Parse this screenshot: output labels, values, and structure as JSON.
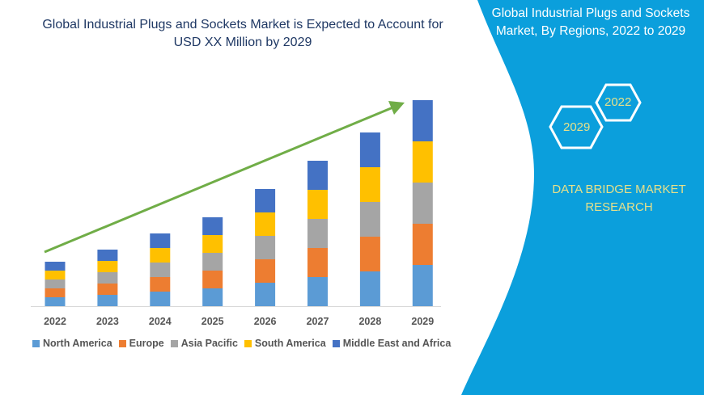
{
  "chart_data": {
    "type": "bar",
    "stacked": true,
    "title": "Global Industrial Plugs and Sockets Market is Expected to Account for USD XX Million by 2029",
    "categories": [
      "2022",
      "2023",
      "2024",
      "2025",
      "2026",
      "2027",
      "2028",
      "2029"
    ],
    "series": [
      {
        "name": "North America",
        "color": "#5b9bd5",
        "values": [
          11,
          14,
          18,
          22,
          29,
          36,
          43,
          51
        ]
      },
      {
        "name": "Europe",
        "color": "#ed7d31",
        "values": [
          11,
          14,
          18,
          22,
          29,
          36,
          43,
          51
        ]
      },
      {
        "name": "Asia Pacific",
        "color": "#a5a5a5",
        "values": [
          11,
          14,
          18,
          22,
          29,
          36,
          43,
          51
        ]
      },
      {
        "name": "South America",
        "color": "#ffc000",
        "values": [
          11,
          14,
          18,
          22,
          29,
          36,
          43,
          51
        ]
      },
      {
        "name": "Middle East and Africa",
        "color": "#4472c4",
        "values": [
          11,
          14,
          18,
          22,
          29,
          36,
          43,
          51
        ]
      }
    ],
    "legend_position": "bottom",
    "grid": false,
    "trend_arrow_color": "#70ad47"
  },
  "panel": {
    "title": "Global Industrial Plugs and Sockets Market, By Regions, 2022 to 2029",
    "hex_start": "2022",
    "hex_end": "2029",
    "brand": "DATA BRIDGE MARKET RESEARCH",
    "color": "#0b9fdc"
  }
}
